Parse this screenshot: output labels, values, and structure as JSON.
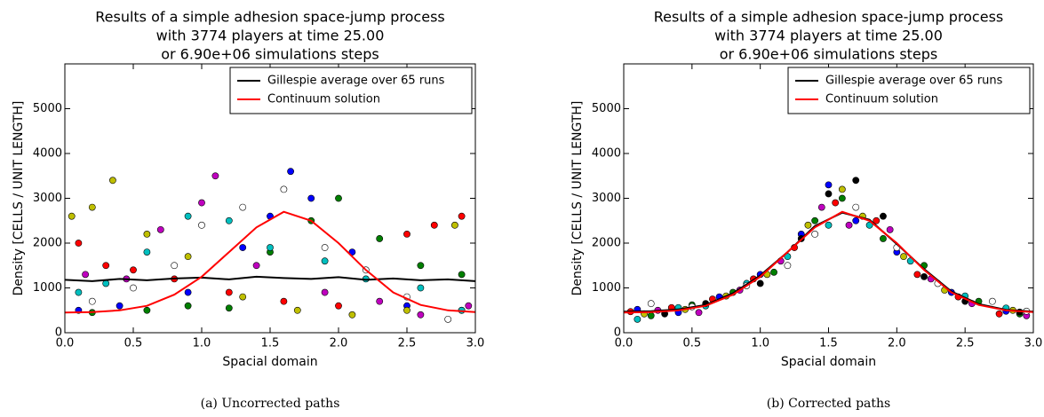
{
  "chart_data": [
    {
      "type": "scatter",
      "title": [
        "Results of a simple adhesion space-jump process",
        "with 3774 players at time 25.00",
        "or 6.90e+06 simulations steps"
      ],
      "xlabel": "Spacial domain",
      "ylabel": "Density [CELLS / UNIT LENGTH]",
      "caption": "(a) Uncorrected paths",
      "xlim": [
        0,
        3
      ],
      "ylim": [
        0,
        6000
      ],
      "xticks": [
        {
          "value": 0,
          "label": "0.0"
        },
        {
          "value": 0.5,
          "label": "0.5"
        },
        {
          "value": 1,
          "label": "1.0"
        },
        {
          "value": 1.5,
          "label": "1.5"
        },
        {
          "value": 2,
          "label": "2.0"
        },
        {
          "value": 2.5,
          "label": "2.5"
        },
        {
          "value": 3,
          "label": "3.0"
        }
      ],
      "yticks": [
        0,
        1000,
        2000,
        3000,
        4000,
        5000
      ],
      "legend": "upper right",
      "series": [
        {
          "color": "#0000ff",
          "x": [
            0.1,
            0.4,
            0.9,
            1.3,
            1.5,
            1.65,
            1.8,
            2.1,
            2.5,
            2.9
          ],
          "values": [
            500,
            600,
            900,
            1900,
            2600,
            3600,
            3000,
            1800,
            600,
            500
          ]
        },
        {
          "color": "#007f00",
          "x": [
            0.2,
            0.6,
            0.9,
            1.2,
            1.5,
            1.8,
            2.0,
            2.3,
            2.6,
            2.9
          ],
          "values": [
            450,
            500,
            600,
            550,
            1800,
            2500,
            3000,
            2100,
            1500,
            1300
          ]
        },
        {
          "color": "#ff0000",
          "x": [
            0.1,
            0.3,
            0.5,
            0.8,
            1.2,
            1.6,
            2.0,
            2.5,
            2.7,
            2.9
          ],
          "values": [
            2000,
            1500,
            1400,
            1200,
            900,
            700,
            600,
            2200,
            2400,
            2600
          ]
        },
        {
          "color": "#bfbf00",
          "x": [
            0.05,
            0.2,
            0.35,
            0.6,
            0.9,
            1.3,
            1.7,
            2.1,
            2.5,
            2.85
          ],
          "values": [
            2600,
            2800,
            3400,
            2200,
            1700,
            800,
            500,
            400,
            500,
            2400
          ]
        },
        {
          "color": "#bf00bf",
          "x": [
            0.15,
            0.45,
            0.7,
            1.0,
            1.1,
            1.4,
            1.9,
            2.3,
            2.6,
            2.95
          ],
          "values": [
            1300,
            1200,
            2300,
            2900,
            3500,
            1500,
            900,
            700,
            400,
            600
          ]
        },
        {
          "color": "#00bfbf",
          "x": [
            0.1,
            0.3,
            0.6,
            0.9,
            1.2,
            1.5,
            1.9,
            2.2,
            2.6,
            2.9
          ],
          "values": [
            900,
            1100,
            1800,
            2600,
            2500,
            1900,
            1600,
            1200,
            1000,
            500
          ]
        },
        {
          "color": "#ffffff",
          "x": [
            0.2,
            0.5,
            0.8,
            1.0,
            1.3,
            1.6,
            1.9,
            2.2,
            2.5,
            2.8
          ],
          "values": [
            700,
            1000,
            1500,
            2400,
            2800,
            3200,
            1900,
            1400,
            800,
            300
          ]
        },
        {
          "name": "Gillespie average over 65 runs",
          "color": "#000000",
          "style": "line",
          "x": [
            0,
            0.2,
            0.4,
            0.6,
            0.8,
            1.0,
            1.2,
            1.4,
            1.6,
            1.8,
            2.0,
            2.2,
            2.4,
            2.6,
            2.8,
            3.0
          ],
          "values": [
            1180,
            1150,
            1200,
            1170,
            1210,
            1230,
            1190,
            1250,
            1220,
            1200,
            1240,
            1180,
            1210,
            1170,
            1190,
            1150
          ]
        },
        {
          "name": "Continuum solution",
          "color": "#ff0000",
          "style": "line",
          "x": [
            0,
            0.2,
            0.4,
            0.6,
            0.8,
            1.0,
            1.2,
            1.4,
            1.6,
            1.8,
            2.0,
            2.2,
            2.4,
            2.6,
            2.8,
            3.0
          ],
          "values": [
            450,
            460,
            500,
            600,
            850,
            1250,
            1800,
            2350,
            2700,
            2500,
            2000,
            1400,
            900,
            620,
            500,
            460
          ]
        }
      ]
    },
    {
      "type": "scatter",
      "title": [
        "Results of a simple adhesion space-jump process",
        "with 3774 players at time 25.00",
        "or 6.90e+06 simulations steps"
      ],
      "xlabel": "Spacial domain",
      "ylabel": "Density [CELLS / UNIT LENGTH]",
      "caption": "(b) Corrected paths",
      "xlim": [
        0,
        3
      ],
      "ylim": [
        0,
        6000
      ],
      "xticks": [
        {
          "value": 0,
          "label": "0.0"
        },
        {
          "value": 0.5,
          "label": "0.5"
        },
        {
          "value": 1,
          "label": "1.0"
        },
        {
          "value": 1.5,
          "label": "1.5"
        },
        {
          "value": 2,
          "label": "2.0"
        },
        {
          "value": 2.5,
          "label": "2.5"
        },
        {
          "value": 3,
          "label": "3.0"
        }
      ],
      "yticks": [
        0,
        1000,
        2000,
        3000,
        4000,
        5000
      ],
      "legend": "upper right",
      "series": [
        {
          "color": "#0000ff",
          "x": [
            0.1,
            0.4,
            0.7,
            1.0,
            1.3,
            1.5,
            1.7,
            2.0,
            2.4,
            2.8
          ],
          "values": [
            520,
            450,
            800,
            1300,
            2200,
            3300,
            2500,
            1800,
            900,
            480
          ]
        },
        {
          "color": "#007f00",
          "x": [
            0.2,
            0.5,
            0.8,
            1.1,
            1.4,
            1.6,
            1.9,
            2.2,
            2.6,
            2.9
          ],
          "values": [
            380,
            620,
            900,
            1350,
            2500,
            3000,
            2100,
            1500,
            700,
            420
          ]
        },
        {
          "color": "#ff0000",
          "x": [
            0.05,
            0.35,
            0.65,
            0.95,
            1.25,
            1.55,
            1.85,
            2.15,
            2.45,
            2.75
          ],
          "values": [
            470,
            560,
            750,
            1200,
            1900,
            2900,
            2500,
            1300,
            800,
            420
          ]
        },
        {
          "color": "#bfbf00",
          "x": [
            0.15,
            0.45,
            0.75,
            1.05,
            1.35,
            1.6,
            1.75,
            2.05,
            2.35,
            2.85
          ],
          "values": [
            420,
            520,
            820,
            1300,
            2400,
            3200,
            2600,
            1700,
            950,
            500
          ]
        },
        {
          "color": "#bf00bf",
          "x": [
            0.25,
            0.55,
            0.85,
            1.15,
            1.45,
            1.65,
            1.95,
            2.25,
            2.55,
            2.95
          ],
          "values": [
            500,
            450,
            950,
            1600,
            2800,
            2400,
            2300,
            1200,
            650,
            380
          ]
        },
        {
          "color": "#00bfbf",
          "x": [
            0.1,
            0.4,
            0.6,
            0.9,
            1.2,
            1.5,
            1.8,
            2.1,
            2.5,
            2.8
          ],
          "values": [
            300,
            560,
            600,
            1100,
            1700,
            2400,
            2400,
            1600,
            820,
            550
          ]
        },
        {
          "color": "#ffffff",
          "x": [
            0.2,
            0.5,
            0.9,
            1.2,
            1.4,
            1.7,
            2.0,
            2.3,
            2.7,
            2.95
          ],
          "values": [
            650,
            580,
            1050,
            1500,
            2200,
            2800,
            1900,
            1100,
            700,
            480
          ]
        },
        {
          "color": "#000000",
          "x": [
            0.3,
            0.6,
            1.0,
            1.3,
            1.5,
            1.7,
            1.9,
            2.2,
            2.5,
            2.9
          ],
          "values": [
            420,
            650,
            1100,
            2100,
            3100,
            3400,
            2600,
            1250,
            700,
            460
          ]
        },
        {
          "name": "Gillespie average over 65 runs",
          "color": "#000000",
          "style": "line",
          "x": [
            0,
            0.2,
            0.4,
            0.6,
            0.8,
            1.0,
            1.2,
            1.4,
            1.6,
            1.8,
            2.0,
            2.2,
            2.4,
            2.6,
            2.8,
            3.0
          ],
          "values": [
            470,
            480,
            520,
            620,
            880,
            1280,
            1800,
            2380,
            2680,
            2520,
            1980,
            1420,
            920,
            640,
            510,
            470
          ]
        },
        {
          "name": "Continuum solution",
          "color": "#ff0000",
          "style": "line",
          "x": [
            0,
            0.2,
            0.4,
            0.6,
            0.8,
            1.0,
            1.2,
            1.4,
            1.6,
            1.8,
            2.0,
            2.2,
            2.4,
            2.6,
            2.8,
            3.0
          ],
          "values": [
            450,
            460,
            500,
            600,
            850,
            1250,
            1800,
            2350,
            2700,
            2500,
            2000,
            1400,
            900,
            620,
            500,
            460
          ]
        }
      ]
    }
  ]
}
